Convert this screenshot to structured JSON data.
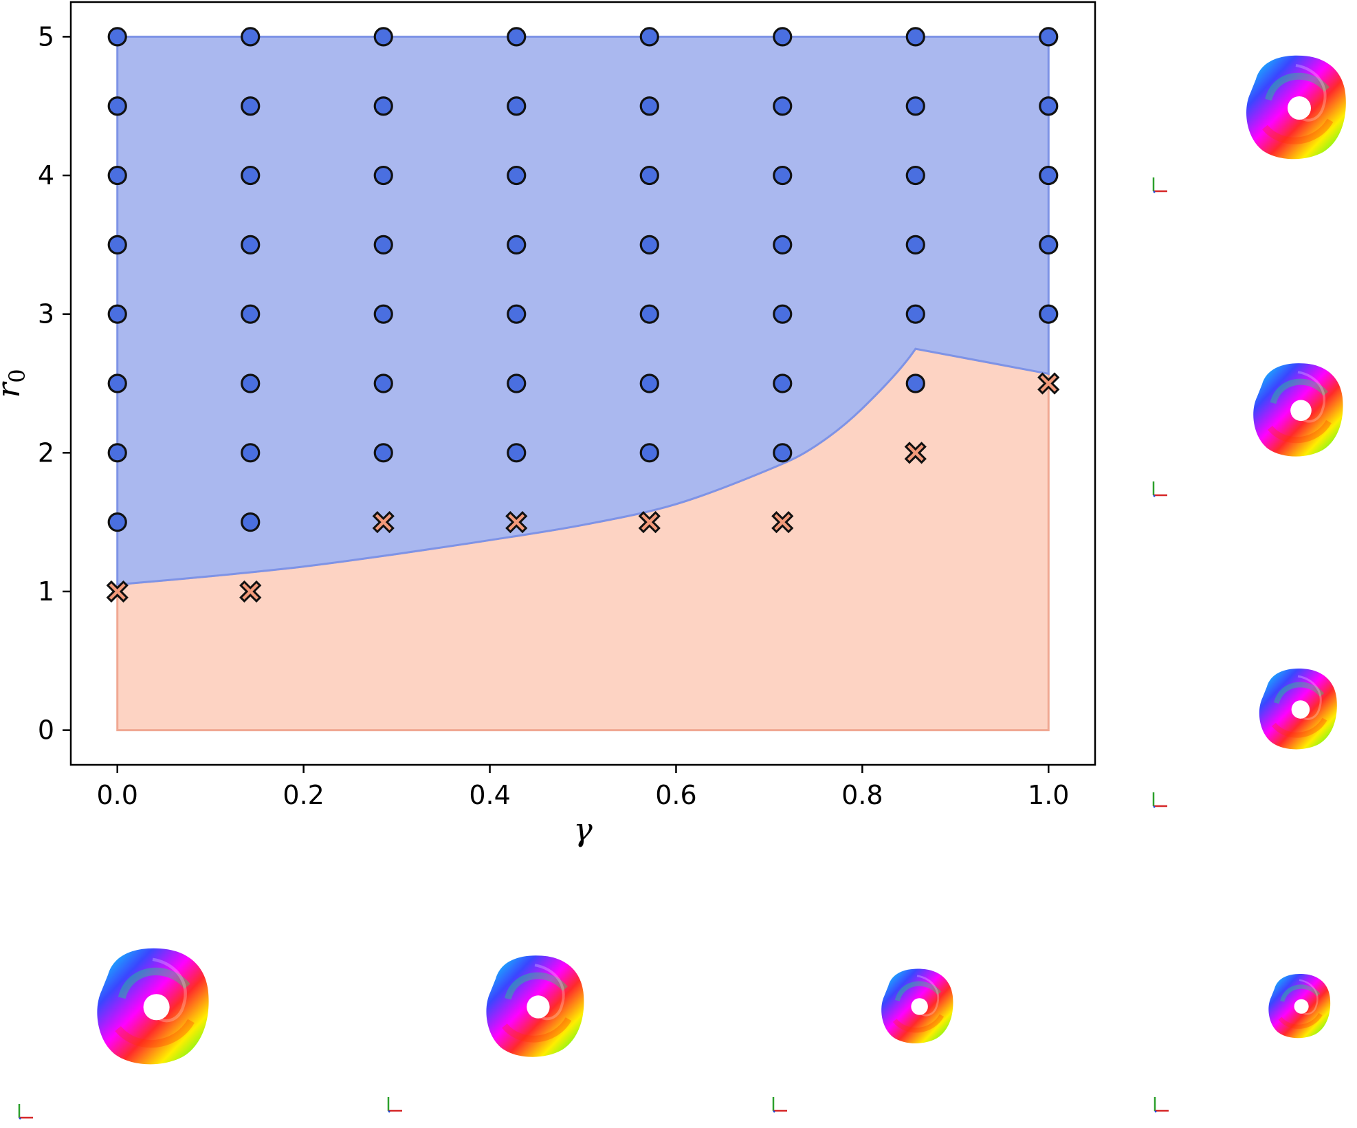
{
  "chart_data": {
    "type": "scatter",
    "title": "",
    "xlabel": "γ",
    "ylabel": "r0",
    "ylabel_main": "r",
    "ylabel_sub": "0",
    "xlim": [
      -0.05,
      1.05
    ],
    "ylim": [
      -0.25,
      5.25
    ],
    "xticks": [
      0.0,
      0.2,
      0.4,
      0.6,
      0.8,
      1.0
    ],
    "xtick_labels": [
      "0.0",
      "0.2",
      "0.4",
      "0.6",
      "0.8",
      "1.0"
    ],
    "yticks": [
      0,
      1,
      2,
      3,
      4,
      5
    ],
    "ytick_labels": [
      "0",
      "1",
      "2",
      "3",
      "4",
      "5"
    ],
    "grid": false,
    "legend": "none",
    "colors": {
      "stable_fill": "#aab8ef",
      "stable_edge": "#7e93e6",
      "unstable_fill": "#fdd3c3",
      "unstable_edge": "#f0a893",
      "circle_marker": "#4a6fe0",
      "cross_marker": "#f39a7a",
      "marker_edge": "#111111"
    },
    "gamma_values": [
      0.0,
      0.142857,
      0.285714,
      0.428571,
      0.571429,
      0.714286,
      0.857143,
      1.0
    ],
    "series": [
      {
        "marker": "circle",
        "x": [
          0.0,
          0.0,
          0.0,
          0.0,
          0.0,
          0.0,
          0.0,
          0.0,
          0.142857,
          0.142857,
          0.142857,
          0.142857,
          0.142857,
          0.142857,
          0.142857,
          0.142857,
          0.285714,
          0.285714,
          0.285714,
          0.285714,
          0.285714,
          0.285714,
          0.285714,
          0.428571,
          0.428571,
          0.428571,
          0.428571,
          0.428571,
          0.428571,
          0.428571,
          0.571429,
          0.571429,
          0.571429,
          0.571429,
          0.571429,
          0.571429,
          0.571429,
          0.714286,
          0.714286,
          0.714286,
          0.714286,
          0.714286,
          0.714286,
          0.714286,
          0.857143,
          0.857143,
          0.857143,
          0.857143,
          0.857143,
          0.857143,
          1.0,
          1.0,
          1.0,
          1.0,
          1.0
        ],
        "y": [
          1.5,
          2.0,
          2.5,
          3.0,
          3.5,
          4.0,
          4.5,
          5.0,
          1.5,
          2.0,
          2.5,
          3.0,
          3.5,
          4.0,
          4.5,
          5.0,
          2.0,
          2.5,
          3.0,
          3.5,
          4.0,
          4.5,
          5.0,
          2.0,
          2.5,
          3.0,
          3.5,
          4.0,
          4.5,
          5.0,
          2.0,
          2.5,
          3.0,
          3.5,
          4.0,
          4.5,
          5.0,
          2.0,
          2.5,
          3.0,
          3.5,
          4.0,
          4.5,
          5.0,
          2.5,
          3.0,
          3.5,
          4.0,
          4.5,
          5.0,
          3.0,
          3.5,
          4.0,
          4.5,
          5.0
        ]
      },
      {
        "marker": "x",
        "x": [
          0.0,
          0.142857,
          0.285714,
          0.428571,
          0.571429,
          0.714286,
          0.857143,
          1.0
        ],
        "y": [
          1.0,
          1.0,
          1.5,
          1.5,
          1.5,
          1.5,
          2.0,
          2.5
        ]
      }
    ],
    "boundary": {
      "x": [
        0.0,
        0.1,
        0.2,
        0.3,
        0.4,
        0.5,
        0.6,
        0.7,
        0.75,
        0.8,
        0.857143,
        1.0
      ],
      "y": [
        1.05,
        1.11,
        1.18,
        1.27,
        1.37,
        1.48,
        1.63,
        1.88,
        2.05,
        2.32,
        2.75,
        2.57
      ]
    },
    "fill_top": 5.0,
    "fill_bottom": 0.0
  },
  "thumbnails": {
    "right_column": [
      {
        "scale": 1.0
      },
      {
        "scale": 0.9
      },
      {
        "scale": 0.78
      }
    ],
    "bottom_row": [
      {
        "scale": 1.12
      },
      {
        "scale": 0.98
      },
      {
        "scale": 0.72
      },
      {
        "scale": 0.62
      }
    ],
    "triad_icon": "axis-triad-icon"
  }
}
